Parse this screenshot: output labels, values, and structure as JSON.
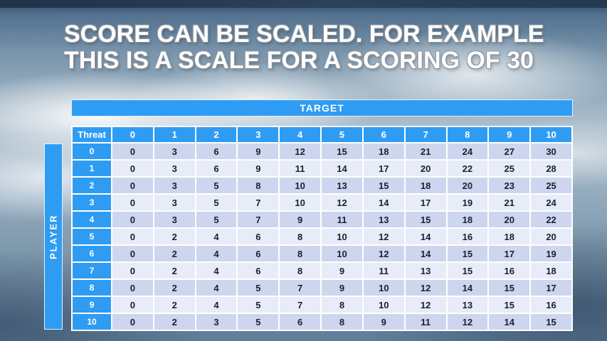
{
  "title": {
    "line1": "SCORE CAN BE SCALED. FOR EXAMPLE",
    "line2": "THIS IS A SCALE FOR A SCORING OF 30"
  },
  "table": {
    "target_label": "TARGET",
    "player_label": "PLAYER",
    "threat_label": "Threat",
    "col_headers": [
      "0",
      "1",
      "2",
      "3",
      "4",
      "5",
      "6",
      "7",
      "8",
      "9",
      "10"
    ],
    "rows": [
      {
        "label": "0",
        "values": [
          0,
          3,
          6,
          9,
          12,
          15,
          18,
          21,
          24,
          27,
          30
        ]
      },
      {
        "label": "1",
        "values": [
          0,
          3,
          6,
          9,
          11,
          14,
          17,
          20,
          22,
          25,
          28
        ]
      },
      {
        "label": "2",
        "values": [
          0,
          3,
          5,
          8,
          10,
          13,
          15,
          18,
          20,
          23,
          25
        ]
      },
      {
        "label": "3",
        "values": [
          0,
          3,
          5,
          7,
          10,
          12,
          14,
          17,
          19,
          21,
          24
        ]
      },
      {
        "label": "4",
        "values": [
          0,
          3,
          5,
          7,
          9,
          11,
          13,
          15,
          18,
          20,
          22
        ]
      },
      {
        "label": "5",
        "values": [
          0,
          2,
          4,
          6,
          8,
          10,
          12,
          14,
          16,
          18,
          20
        ]
      },
      {
        "label": "6",
        "values": [
          0,
          2,
          4,
          6,
          8,
          10,
          12,
          14,
          15,
          17,
          19
        ]
      },
      {
        "label": "7",
        "values": [
          0,
          2,
          4,
          6,
          8,
          9,
          11,
          13,
          15,
          16,
          18
        ]
      },
      {
        "label": "8",
        "values": [
          0,
          2,
          4,
          5,
          7,
          9,
          10,
          12,
          14,
          15,
          17
        ]
      },
      {
        "label": "9",
        "values": [
          0,
          2,
          4,
          5,
          7,
          8,
          10,
          12,
          13,
          15,
          16
        ]
      },
      {
        "label": "10",
        "values": [
          0,
          2,
          3,
          5,
          6,
          8,
          9,
          11,
          12,
          14,
          15
        ]
      }
    ]
  },
  "colors": {
    "accent": "#2f9cf3",
    "band_dark": "#cdd6ee",
    "band_light": "#e7ecf8",
    "title_text": "#ffffff"
  }
}
